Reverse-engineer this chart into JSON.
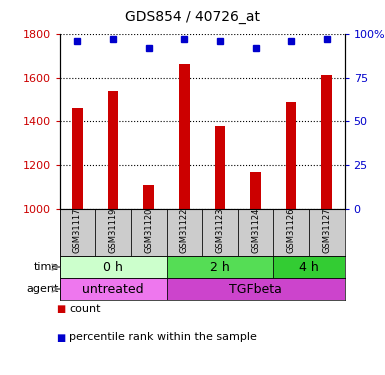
{
  "title": "GDS854 / 40726_at",
  "samples": [
    "GSM31117",
    "GSM31119",
    "GSM31120",
    "GSM31122",
    "GSM31123",
    "GSM31124",
    "GSM31126",
    "GSM31127"
  ],
  "counts": [
    1460,
    1540,
    1110,
    1660,
    1380,
    1170,
    1490,
    1610
  ],
  "percentiles": [
    96,
    97,
    92,
    97,
    96,
    92,
    96,
    97
  ],
  "ylim_left": [
    1000,
    1800
  ],
  "ylim_right": [
    0,
    100
  ],
  "yticks_left": [
    1000,
    1200,
    1400,
    1600,
    1800
  ],
  "yticks_right": [
    0,
    25,
    50,
    75,
    100
  ],
  "bar_color": "#cc0000",
  "dot_color": "#0000cc",
  "time_groups": [
    {
      "label": "0 h",
      "start": 0,
      "end": 3,
      "color": "#ccffcc"
    },
    {
      "label": "2 h",
      "start": 3,
      "end": 6,
      "color": "#55dd55"
    },
    {
      "label": "4 h",
      "start": 6,
      "end": 8,
      "color": "#33cc33"
    }
  ],
  "agent_groups": [
    {
      "label": "untreated",
      "start": 0,
      "end": 3,
      "color": "#ee77ee"
    },
    {
      "label": "TGFbeta",
      "start": 3,
      "end": 8,
      "color": "#cc44cc"
    }
  ],
  "sample_bg_color": "#cccccc",
  "left_label_color": "#cc0000",
  "right_label_color": "#0000cc",
  "bar_width": 0.3
}
